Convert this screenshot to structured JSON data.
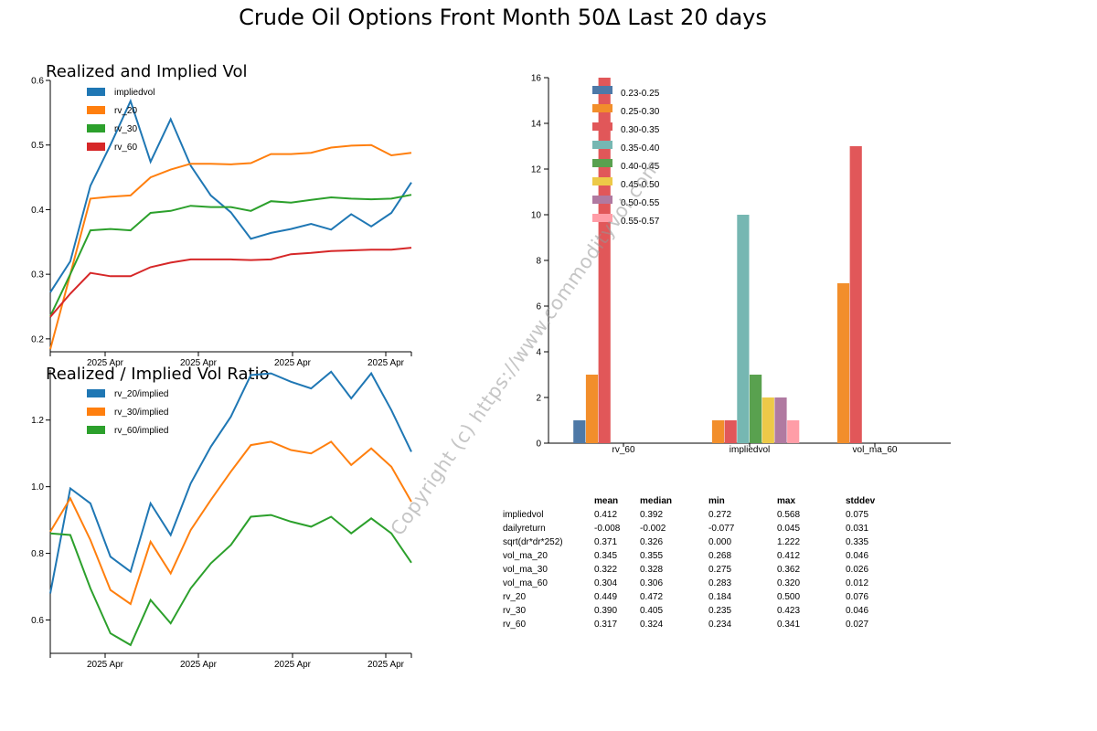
{
  "title": "Crude Oil Options Front Month 50Δ Last 20 days",
  "watermark": "Copyright (c) https://www.commodityvol.com",
  "chart_data": [
    {
      "type": "line",
      "title": "Realized and Implied Vol",
      "x_tick_labels": [
        "2025 Apr",
        "2025 Apr",
        "2025 Apr",
        "2025 Apr"
      ],
      "ylim": [
        0.18,
        0.6
      ],
      "y_ticks": [
        0.2,
        0.3,
        0.4,
        0.5,
        0.6
      ],
      "legend_position": "top-left",
      "series": [
        {
          "name": "impliedvol",
          "color": "#1f77b4",
          "values": [
            0.272,
            0.32,
            0.437,
            0.5,
            0.568,
            0.474,
            0.54,
            0.468,
            0.422,
            0.396,
            0.355,
            0.364,
            0.37,
            0.378,
            0.369,
            0.393,
            0.374,
            0.395,
            0.442
          ]
        },
        {
          "name": "rv_20",
          "color": "#ff7f0e",
          "values": [
            0.184,
            0.3,
            0.417,
            0.42,
            0.422,
            0.45,
            0.462,
            0.471,
            0.471,
            0.47,
            0.472,
            0.486,
            0.486,
            0.488,
            0.496,
            0.499,
            0.5,
            0.484,
            0.488
          ]
        },
        {
          "name": "rv_30",
          "color": "#2ca02c",
          "values": [
            0.235,
            0.3,
            0.368,
            0.37,
            0.368,
            0.395,
            0.398,
            0.406,
            0.404,
            0.404,
            0.398,
            0.413,
            0.411,
            0.415,
            0.419,
            0.417,
            0.416,
            0.417,
            0.423
          ]
        },
        {
          "name": "rv_60",
          "color": "#d62728",
          "values": [
            0.234,
            0.27,
            0.302,
            0.297,
            0.297,
            0.311,
            0.318,
            0.323,
            0.323,
            0.323,
            0.322,
            0.323,
            0.331,
            0.333,
            0.336,
            0.337,
            0.338,
            0.338,
            0.341
          ]
        }
      ]
    },
    {
      "type": "line",
      "title": "Realized / Implied Vol Ratio",
      "x_tick_labels": [
        "2025 Apr",
        "2025 Apr",
        "2025 Apr",
        "2025 Apr"
      ],
      "ylim": [
        0.5,
        1.35
      ],
      "y_ticks": [
        0.6,
        0.8,
        1.0,
        1.2
      ],
      "legend_position": "top-left",
      "series": [
        {
          "name": "rv_20/implied",
          "color": "#1f77b4",
          "values": [
            0.68,
            0.995,
            0.95,
            0.79,
            0.745,
            0.95,
            0.855,
            1.01,
            1.12,
            1.21,
            1.335,
            1.34,
            1.315,
            1.295,
            1.345,
            1.265,
            1.34,
            1.23,
            1.105
          ]
        },
        {
          "name": "rv_30/implied",
          "color": "#ff7f0e",
          "values": [
            0.865,
            0.965,
            0.84,
            0.69,
            0.648,
            0.835,
            0.74,
            0.87,
            0.96,
            1.045,
            1.125,
            1.135,
            1.11,
            1.1,
            1.135,
            1.065,
            1.115,
            1.06,
            0.955
          ]
        },
        {
          "name": "rv_60/implied",
          "color": "#2ca02c",
          "values": [
            0.86,
            0.855,
            0.695,
            0.56,
            0.525,
            0.66,
            0.59,
            0.695,
            0.77,
            0.825,
            0.91,
            0.915,
            0.895,
            0.88,
            0.91,
            0.86,
            0.905,
            0.86,
            0.772
          ]
        }
      ]
    },
    {
      "type": "bar",
      "categories": [
        "rv_60",
        "impliedvol",
        "vol_ma_60"
      ],
      "ylim": [
        0,
        16
      ],
      "y_ticks": [
        0,
        2,
        4,
        6,
        8,
        10,
        12,
        14,
        16
      ],
      "legend_position": "top-left",
      "series": [
        {
          "name": "0.23-0.25",
          "color": "#4e79a7",
          "values": [
            1,
            0,
            0
          ]
        },
        {
          "name": "0.25-0.30",
          "color": "#f28e2b",
          "values": [
            3,
            1,
            7
          ]
        },
        {
          "name": "0.30-0.35",
          "color": "#e15759",
          "values": [
            16,
            1,
            13
          ]
        },
        {
          "name": "0.35-0.40",
          "color": "#76b7b2",
          "values": [
            0,
            10,
            0
          ]
        },
        {
          "name": "0.40-0.45",
          "color": "#59a14f",
          "values": [
            0,
            3,
            0
          ]
        },
        {
          "name": "0.45-0.50",
          "color": "#edc948",
          "values": [
            0,
            2,
            0
          ]
        },
        {
          "name": "0.50-0.55",
          "color": "#b07aa1",
          "values": [
            0,
            2,
            0
          ]
        },
        {
          "name": "0.55-0.57",
          "color": "#ff9da7",
          "values": [
            0,
            1,
            0
          ]
        }
      ]
    },
    {
      "type": "table",
      "columns": [
        "",
        "mean",
        "median",
        "min",
        "max",
        "stddev"
      ],
      "rows": [
        [
          "impliedvol",
          "0.412",
          "0.392",
          "0.272",
          "0.568",
          "0.075"
        ],
        [
          "dailyreturn",
          "-0.008",
          "-0.002",
          "-0.077",
          "0.045",
          "0.031"
        ],
        [
          "sqrt(dr*dr*252)",
          "0.371",
          "0.326",
          "0.000",
          "1.222",
          "0.335"
        ],
        [
          "vol_ma_20",
          "0.345",
          "0.355",
          "0.268",
          "0.412",
          "0.046"
        ],
        [
          "vol_ma_30",
          "0.322",
          "0.328",
          "0.275",
          "0.362",
          "0.026"
        ],
        [
          "vol_ma_60",
          "0.304",
          "0.306",
          "0.283",
          "0.320",
          "0.012"
        ],
        [
          "rv_20",
          "0.449",
          "0.472",
          "0.184",
          "0.500",
          "0.076"
        ],
        [
          "rv_30",
          "0.390",
          "0.405",
          "0.235",
          "0.423",
          "0.046"
        ],
        [
          "rv_60",
          "0.317",
          "0.324",
          "0.234",
          "0.341",
          "0.027"
        ]
      ]
    }
  ]
}
